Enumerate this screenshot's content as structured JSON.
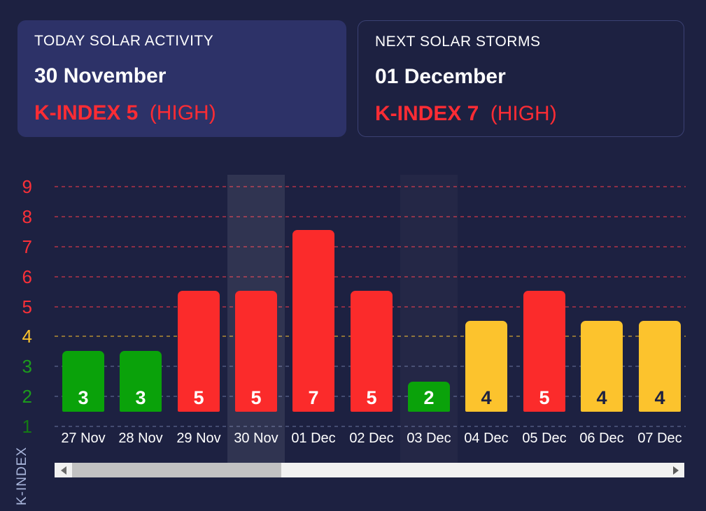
{
  "cards": {
    "today": {
      "title": "TODAY SOLAR ACTIVITY",
      "date": "30 November",
      "kindex": "K-INDEX 5",
      "kindex_level": "(HIGH)"
    },
    "next": {
      "title": "NEXT SOLAR STORMS",
      "date": "01 December",
      "kindex": "K-INDEX 7",
      "kindex_level": "(HIGH)"
    }
  },
  "chart_data": {
    "type": "bar",
    "title": "",
    "ylabel": "K-INDEX",
    "xlabel": "",
    "categories": [
      "27 Nov",
      "28 Nov",
      "29 Nov",
      "30 Nov",
      "01 Dec",
      "02 Dec",
      "03 Dec",
      "04 Dec",
      "05 Dec",
      "06 Dec",
      "07 Dec"
    ],
    "values": [
      3,
      3,
      5,
      5,
      7,
      5,
      2,
      4,
      5,
      4,
      4
    ],
    "yticks": [
      9,
      8,
      7,
      6,
      5,
      4,
      3,
      2,
      1
    ],
    "ylim": [
      1,
      9
    ],
    "grid": "dashed-horizontal",
    "legend": "none",
    "highlighted_category": "30 Nov",
    "secondary_highlighted_category": "03 Dec"
  },
  "colors": {
    "background": "#1d2141",
    "card_background": "#2d3268",
    "card_border": "#3b4173",
    "accent_red": "#fb2b2b",
    "accent_green": "#0aa20a",
    "accent_yellow": "#fcc32d",
    "kindex_text_red": "#fc2c34",
    "bar_value_light": "#ffffff",
    "bar_value_dark": "#1d2141",
    "highlight_strong": "rgba(255,255,255,0.085)",
    "highlight_faint": "rgba(255,255,255,0.03)",
    "axis_label": "#a9b6dc",
    "tick_colors": {
      "9": "#fb3038",
      "8": "#fb3038",
      "7": "#fb3038",
      "6": "#fb3038",
      "5": "#fb3038",
      "4": "#fcc32d",
      "3": "#1c9c1c",
      "2": "#1c9c1c",
      "1": "#147a14"
    },
    "grid_colors": {
      "high": "rgba(251,60,75,0.5)",
      "moderate": "rgba(252,195,45,0.5)",
      "low": "rgba(170,185,235,0.28)"
    },
    "scrollbar_track": "#f1f1f1",
    "scrollbar_thumb": "#c2c2c2"
  },
  "icons": {
    "scrollbar_left": "left-arrow-icon",
    "scrollbar_right": "right-arrow-icon"
  }
}
